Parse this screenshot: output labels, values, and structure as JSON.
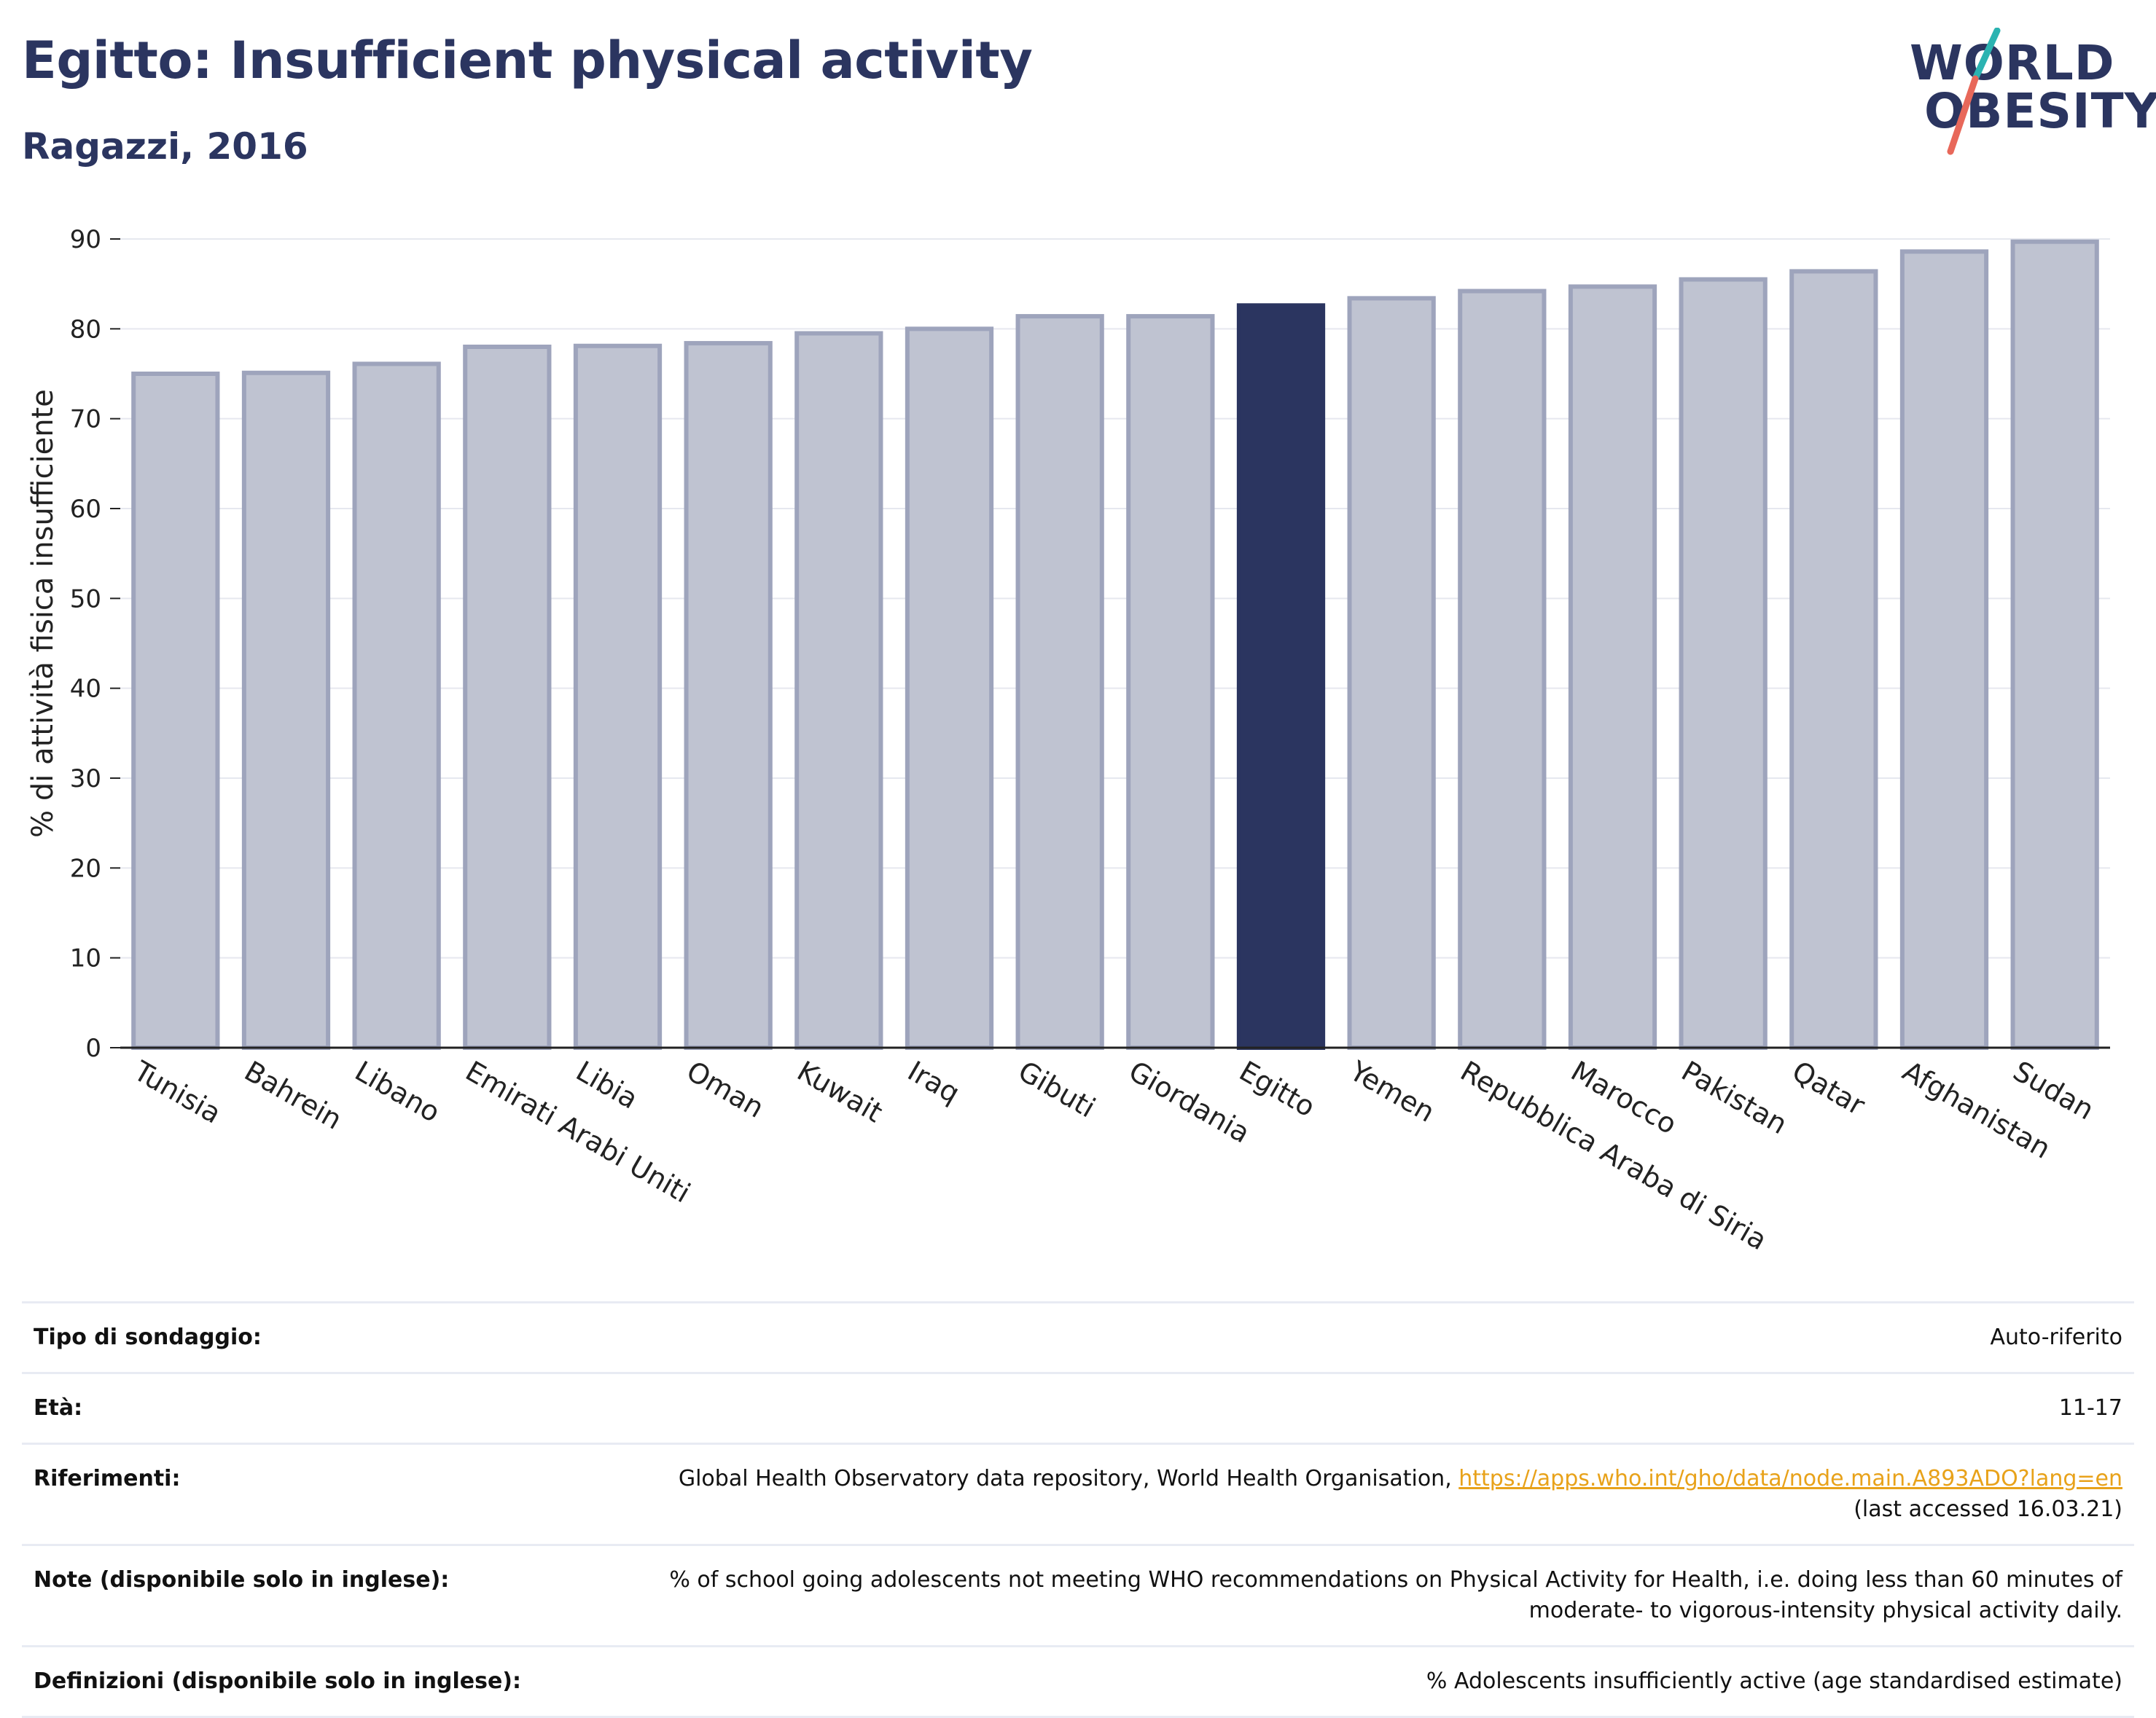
{
  "header": {
    "title": "Egitto: Insufficient physical activity",
    "subtitle": "Ragazzi, 2016",
    "logo_line1": "WORLD",
    "logo_line2": "OBESITY"
  },
  "colors": {
    "bar": "#bfc3d1",
    "bar_stroke": "#9ea4bc",
    "highlight": "#2b3560",
    "title": "#2b3560",
    "link": "#e8a21a",
    "logo_teal": "#2bb3b1",
    "logo_red": "#e8685a"
  },
  "chart_data": {
    "type": "bar",
    "ylabel": "% di attività fisica insufficiente",
    "ylim": [
      0,
      90
    ],
    "yticks": [
      0,
      10,
      20,
      30,
      40,
      50,
      60,
      70,
      80,
      90
    ],
    "grid": true,
    "highlight": "Egitto",
    "categories": [
      "Tunisia",
      "Bahrein",
      "Libano",
      "Emirati Arabi Uniti",
      "Libia",
      "Oman",
      "Kuwait",
      "Iraq",
      "Gibuti",
      "Giordania",
      "Egitto",
      "Yemen",
      "Repubblica Araba di Siria",
      "Marocco",
      "Pakistan",
      "Qatar",
      "Afghanistan",
      "Sudan"
    ],
    "values": [
      75.0,
      75.1,
      76.1,
      78.0,
      78.1,
      78.4,
      79.5,
      80.0,
      81.4,
      81.4,
      82.6,
      83.4,
      84.2,
      84.7,
      85.5,
      86.4,
      88.6,
      89.7
    ]
  },
  "meta": [
    {
      "key": "Tipo di sondaggio:",
      "value": "Auto-riferito"
    },
    {
      "key": "Età:",
      "value": "11-17"
    },
    {
      "key": "Riferimenti:",
      "value": "Global Health Observatory data repository, World Health Organisation, ",
      "link": "https://apps.who.int/gho/data/node.main.A893ADO?lang=en",
      "value2": "(last accessed 16.03.21)"
    },
    {
      "key": "Note (disponibile solo in inglese):",
      "value": "% of school going adolescents not meeting WHO recommendations on Physical Activity for Health, i.e. doing less than 60 minutes of moderate- to vigorous-intensity physical activity daily."
    },
    {
      "key": "Definizioni (disponibile solo in inglese):",
      "value": "% Adolescents insufficiently active (age standardised estimate)"
    }
  ]
}
